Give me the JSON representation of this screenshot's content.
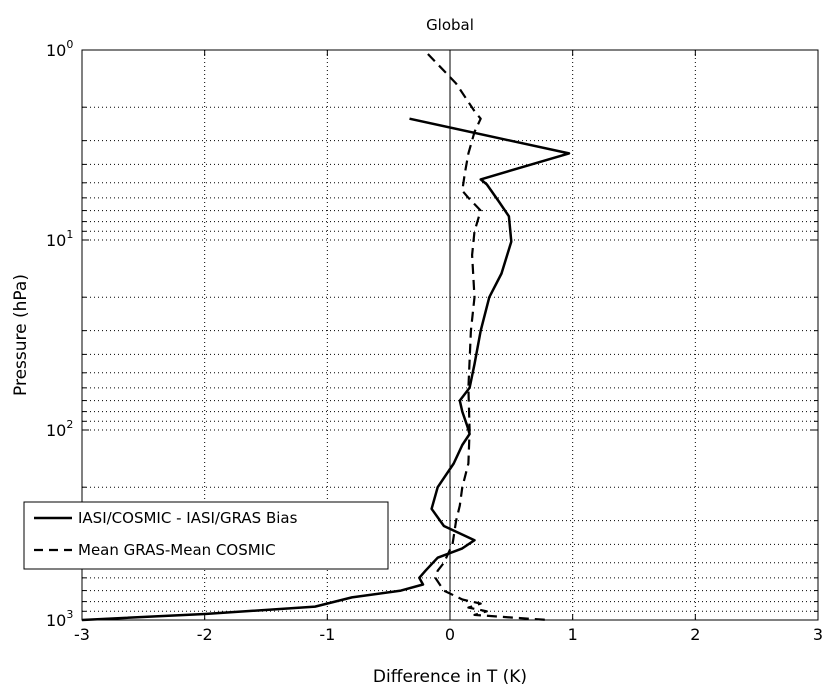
{
  "chart_data": {
    "type": "line",
    "title": "Global",
    "xlabel": "Difference in T (K)",
    "ylabel": "Pressure (hPa)",
    "xlim": [
      -3,
      3
    ],
    "ylim": [
      1,
      1000
    ],
    "y_scale": "log",
    "y_reversed": true,
    "grid": true,
    "grid_style": "dotted",
    "legend_position": "lower-left",
    "colors": {
      "line": "#000000",
      "grid": "#000000",
      "background": "#ffffff"
    },
    "x_ticks": [
      {
        "value": -3,
        "label": "-3"
      },
      {
        "value": -2,
        "label": "-2"
      },
      {
        "value": -1,
        "label": "-1"
      },
      {
        "value": 0,
        "label": "0"
      },
      {
        "value": 1,
        "label": "1"
      },
      {
        "value": 2,
        "label": "2"
      },
      {
        "value": 3,
        "label": "3"
      }
    ],
    "y_ticks": [
      {
        "value": 1,
        "base": "10",
        "exp": "0"
      },
      {
        "value": 10,
        "base": "10",
        "exp": "1"
      },
      {
        "value": 100,
        "base": "10",
        "exp": "2"
      },
      {
        "value": 1000,
        "base": "10",
        "exp": "3"
      }
    ],
    "series": [
      {
        "name": "IASI/COSMIC - IASI/GRAS Bias",
        "style": "solid",
        "line_width": 2.5,
        "points": [
          [
            -0.33,
            2.3
          ],
          [
            0.97,
            3.5
          ],
          [
            0.25,
            4.8
          ],
          [
            0.3,
            5.1
          ],
          [
            0.4,
            6.3
          ],
          [
            0.48,
            7.5
          ],
          [
            0.5,
            10.2
          ],
          [
            0.42,
            15
          ],
          [
            0.32,
            20
          ],
          [
            0.25,
            30
          ],
          [
            0.2,
            45
          ],
          [
            0.16,
            60
          ],
          [
            0.08,
            70
          ],
          [
            0.1,
            80
          ],
          [
            0.14,
            95
          ],
          [
            0.16,
            105
          ],
          [
            0.1,
            120
          ],
          [
            0.03,
            150
          ],
          [
            -0.1,
            200
          ],
          [
            -0.15,
            260
          ],
          [
            -0.05,
            320
          ],
          [
            0.2,
            380
          ],
          [
            0.1,
            420
          ],
          [
            -0.1,
            470
          ],
          [
            -0.2,
            550
          ],
          [
            -0.25,
            600
          ],
          [
            -0.22,
            650
          ],
          [
            -0.4,
            700
          ],
          [
            -0.8,
            760
          ],
          [
            -1.1,
            850
          ],
          [
            -2.0,
            930
          ],
          [
            -3.0,
            1000
          ]
        ]
      },
      {
        "name": "Mean GRAS-Mean COSMIC",
        "style": "dashed",
        "line_width": 2.2,
        "points": [
          [
            -0.18,
            1.05
          ],
          [
            0.05,
            1.5
          ],
          [
            0.2,
            2.1
          ],
          [
            0.25,
            2.3
          ],
          [
            0.2,
            2.7
          ],
          [
            0.15,
            3.5
          ],
          [
            0.12,
            4.5
          ],
          [
            0.1,
            5.5
          ],
          [
            0.15,
            6
          ],
          [
            0.25,
            7
          ],
          [
            0.2,
            9
          ],
          [
            0.18,
            12
          ],
          [
            0.2,
            20
          ],
          [
            0.17,
            30
          ],
          [
            0.15,
            60
          ],
          [
            0.16,
            100
          ],
          [
            0.15,
            150
          ],
          [
            0.1,
            200
          ],
          [
            0.08,
            250
          ],
          [
            0.05,
            300
          ],
          [
            0.02,
            400
          ],
          [
            -0.05,
            500
          ],
          [
            -0.1,
            550
          ],
          [
            -0.12,
            600
          ],
          [
            -0.05,
            700
          ],
          [
            0.1,
            780
          ],
          [
            0.25,
            820
          ],
          [
            0.15,
            860
          ],
          [
            0.3,
            900
          ],
          [
            0.2,
            940
          ],
          [
            0.5,
            970
          ],
          [
            0.8,
            1000
          ]
        ]
      }
    ]
  }
}
